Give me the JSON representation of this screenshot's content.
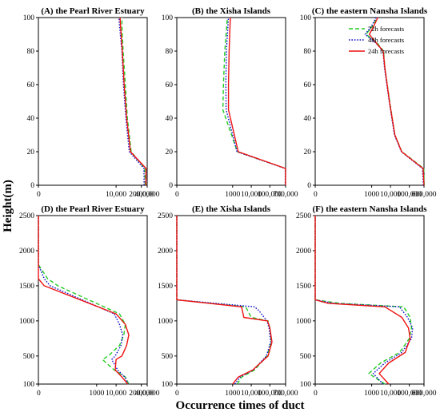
{
  "figure": {
    "ylabel": "Height(m)",
    "xlabel": "Occurrence times of duct"
  },
  "legend": [
    {
      "label": "72h forecasts",
      "color": "#22cc22",
      "dash": "dashed"
    },
    {
      "label": "48h forecasts",
      "color": "#1111cc",
      "dash": "dotted"
    },
    {
      "label": "24h forecasts",
      "color": "#ee1111",
      "dash": "solid"
    }
  ],
  "chart_data": [
    {
      "type": "line",
      "title": "(A) the Pearl River Estuary",
      "xscale": "log",
      "xlim": [
        1,
        400000
      ],
      "xticks": [
        "0",
        "10,000",
        "200,000",
        "400,000"
      ],
      "ylim": [
        0,
        100
      ],
      "yticks": [
        "0",
        "20",
        "40",
        "60",
        "80",
        "100"
      ],
      "series": [
        {
          "name": "72h forecasts",
          "x": [
            320000,
            300000,
            60000,
            38000,
            30000,
            23000,
            20000,
            20000
          ],
          "y": [
            0,
            10,
            20,
            40,
            60,
            80,
            95,
            100
          ]
        },
        {
          "name": "48h forecasts",
          "x": [
            280000,
            270000,
            48000,
            32000,
            24000,
            20000,
            15000,
            14000
          ],
          "y": [
            0,
            10,
            20,
            40,
            60,
            80,
            95,
            100
          ]
        },
        {
          "name": "24h forecasts",
          "x": [
            340000,
            350000,
            55000,
            35000,
            26000,
            21000,
            17000,
            16000
          ],
          "y": [
            0,
            10,
            20,
            40,
            60,
            80,
            95,
            100
          ]
        }
      ]
    },
    {
      "type": "line",
      "title": "(B) the Xisha Islands",
      "xscale": "log",
      "xlim": [
        1,
        700000
      ],
      "xticks": [
        "0",
        "1000",
        "10,000",
        "100,000",
        "700,000"
      ],
      "ylim": [
        0,
        100
      ],
      "yticks": [
        "0",
        "20",
        "40",
        "60",
        "80",
        "100"
      ],
      "series": [
        {
          "name": "72h forecasts",
          "x": [
            680000,
            690000,
            1800,
            300,
            320,
            380,
            480,
            520
          ],
          "y": [
            0,
            10,
            20,
            45,
            60,
            80,
            95,
            100
          ]
        },
        {
          "name": "48h forecasts",
          "x": [
            670000,
            670000,
            1700,
            450,
            430,
            460,
            560,
            600
          ],
          "y": [
            0,
            10,
            20,
            45,
            60,
            80,
            95,
            100
          ]
        },
        {
          "name": "24h forecasts",
          "x": [
            690000,
            700000,
            2000,
            600,
            600,
            650,
            720,
            760
          ],
          "y": [
            0,
            10,
            20,
            45,
            60,
            80,
            95,
            100
          ]
        }
      ]
    },
    {
      "type": "line",
      "title": "(C) the eastern Nansha Islands",
      "xscale": "log",
      "xlim": [
        1,
        600000
      ],
      "xticks": [
        "0",
        "1000",
        "10,000",
        "100,000",
        "600,000"
      ],
      "ylim": [
        0,
        100
      ],
      "yticks": [
        "0",
        "20",
        "40",
        "60",
        "80",
        "100"
      ],
      "series": [
        {
          "name": "72h forecasts",
          "x": [
            620000,
            580000,
            40000,
            17000,
            9000,
            5000,
            4300,
            1900,
            500,
            1100,
            2000
          ],
          "y": [
            0,
            10,
            20,
            30,
            50,
            70,
            80,
            85,
            90,
            95,
            100
          ]
        },
        {
          "name": "48h forecasts",
          "x": [
            560000,
            500000,
            38000,
            16000,
            8500,
            4800,
            4000,
            1600,
            450,
            1000,
            1700
          ],
          "y": [
            0,
            10,
            20,
            30,
            50,
            70,
            80,
            85,
            90,
            95,
            100
          ]
        },
        {
          "name": "24h forecasts",
          "x": [
            600000,
            540000,
            39000,
            17000,
            8800,
            5000,
            4100,
            1700,
            750,
            1300,
            2100
          ],
          "y": [
            0,
            10,
            20,
            30,
            50,
            70,
            80,
            85,
            90,
            95,
            100
          ]
        }
      ]
    },
    {
      "type": "line",
      "title": "(D) the Pearl River Estuary",
      "xscale": "log",
      "xlim": [
        1,
        400000
      ],
      "xticks": [
        "0",
        "1000",
        "10,000",
        "200,000",
        "400,000"
      ],
      "ylim": [
        100,
        2500
      ],
      "yticks": [
        "100",
        "500",
        "1000",
        "1500",
        "2000",
        "2500"
      ],
      "series": [
        {
          "name": "72h forecasts",
          "x": [
            45000,
            30000,
            8000,
            2000,
            4000,
            15000,
            25000,
            30000,
            15000,
            10,
            3,
            1,
            1
          ],
          "y": [
            100,
            200,
            300,
            450,
            500,
            650,
            800,
            950,
            1100,
            1500,
            1600,
            1800,
            2500
          ]
        },
        {
          "name": "48h forecasts",
          "x": [
            42000,
            28000,
            12000,
            6000,
            9000,
            18000,
            22000,
            15000,
            8000,
            4,
            2,
            1,
            1
          ],
          "y": [
            100,
            200,
            300,
            450,
            500,
            650,
            800,
            950,
            1100,
            1500,
            1600,
            1800,
            2500
          ]
        },
        {
          "name": "24h forecasts",
          "x": [
            40000,
            20000,
            9000,
            10000,
            20000,
            35000,
            45000,
            30000,
            10000,
            2,
            1,
            1,
            1
          ],
          "y": [
            100,
            200,
            300,
            450,
            500,
            650,
            800,
            950,
            1100,
            1500,
            1600,
            1800,
            2500
          ]
        }
      ]
    },
    {
      "type": "line",
      "title": "(E) the Xisha Islands",
      "xscale": "log",
      "xlim": [
        1,
        700000
      ],
      "xticks": [
        "0",
        "1000",
        "10,000",
        "100,000",
        "700,000"
      ],
      "ylim": [
        100,
        2500
      ],
      "yticks": [
        "100",
        "500",
        "1000",
        "1500",
        "2000",
        "2500"
      ],
      "series": [
        {
          "name": "72h forecasts",
          "x": [
            1800,
            3000,
            15000,
            70000,
            120000,
            100000,
            80000,
            10000,
            5000,
            1,
            1
          ],
          "y": [
            100,
            200,
            300,
            500,
            700,
            900,
            1000,
            1050,
            1200,
            1300,
            2500
          ]
        },
        {
          "name": "48h forecasts",
          "x": [
            1300,
            2500,
            13000,
            65000,
            110000,
            90000,
            70000,
            25000,
            15000,
            1,
            1
          ],
          "y": [
            100,
            200,
            300,
            500,
            700,
            900,
            1000,
            1150,
            1200,
            1300,
            2500
          ]
        },
        {
          "name": "24h forecasts",
          "x": [
            1000,
            2000,
            12000,
            80000,
            130000,
            100000,
            75000,
            4000,
            3000,
            1,
            1
          ],
          "y": [
            100,
            200,
            300,
            500,
            700,
            900,
            1000,
            1050,
            1200,
            1300,
            2500
          ]
        }
      ]
    },
    {
      "type": "line",
      "title": "(F) the eastern Nansha Islands",
      "xscale": "log",
      "xlim": [
        1,
        600000
      ],
      "xticks": [
        "0",
        "1000",
        "10,000",
        "100,000",
        "600,000"
      ],
      "ylim": [
        100,
        2500
      ],
      "yticks": [
        "100",
        "500",
        "1000",
        "1500",
        "2000",
        "2500"
      ],
      "series": [
        {
          "name": "72h forecasts",
          "x": [
            5000,
            700,
            3000,
            30000,
            100000,
            130000,
            110000,
            50000,
            20,
            1,
            1
          ],
          "y": [
            100,
            250,
            400,
            550,
            750,
            900,
            1050,
            1200,
            1250,
            1300,
            2500
          ]
        },
        {
          "name": "48h forecasts",
          "x": [
            4000,
            1200,
            5000,
            40000,
            130000,
            150000,
            80000,
            30000,
            10,
            1,
            1
          ],
          "y": [
            100,
            250,
            400,
            550,
            750,
            900,
            1050,
            1200,
            1250,
            1300,
            2500
          ]
        },
        {
          "name": "24h forecasts",
          "x": [
            8000,
            2500,
            8000,
            60000,
            110000,
            90000,
            40000,
            5000,
            5,
            1,
            1
          ],
          "y": [
            100,
            250,
            400,
            550,
            750,
            900,
            1050,
            1200,
            1250,
            1300,
            2500
          ]
        }
      ]
    }
  ]
}
